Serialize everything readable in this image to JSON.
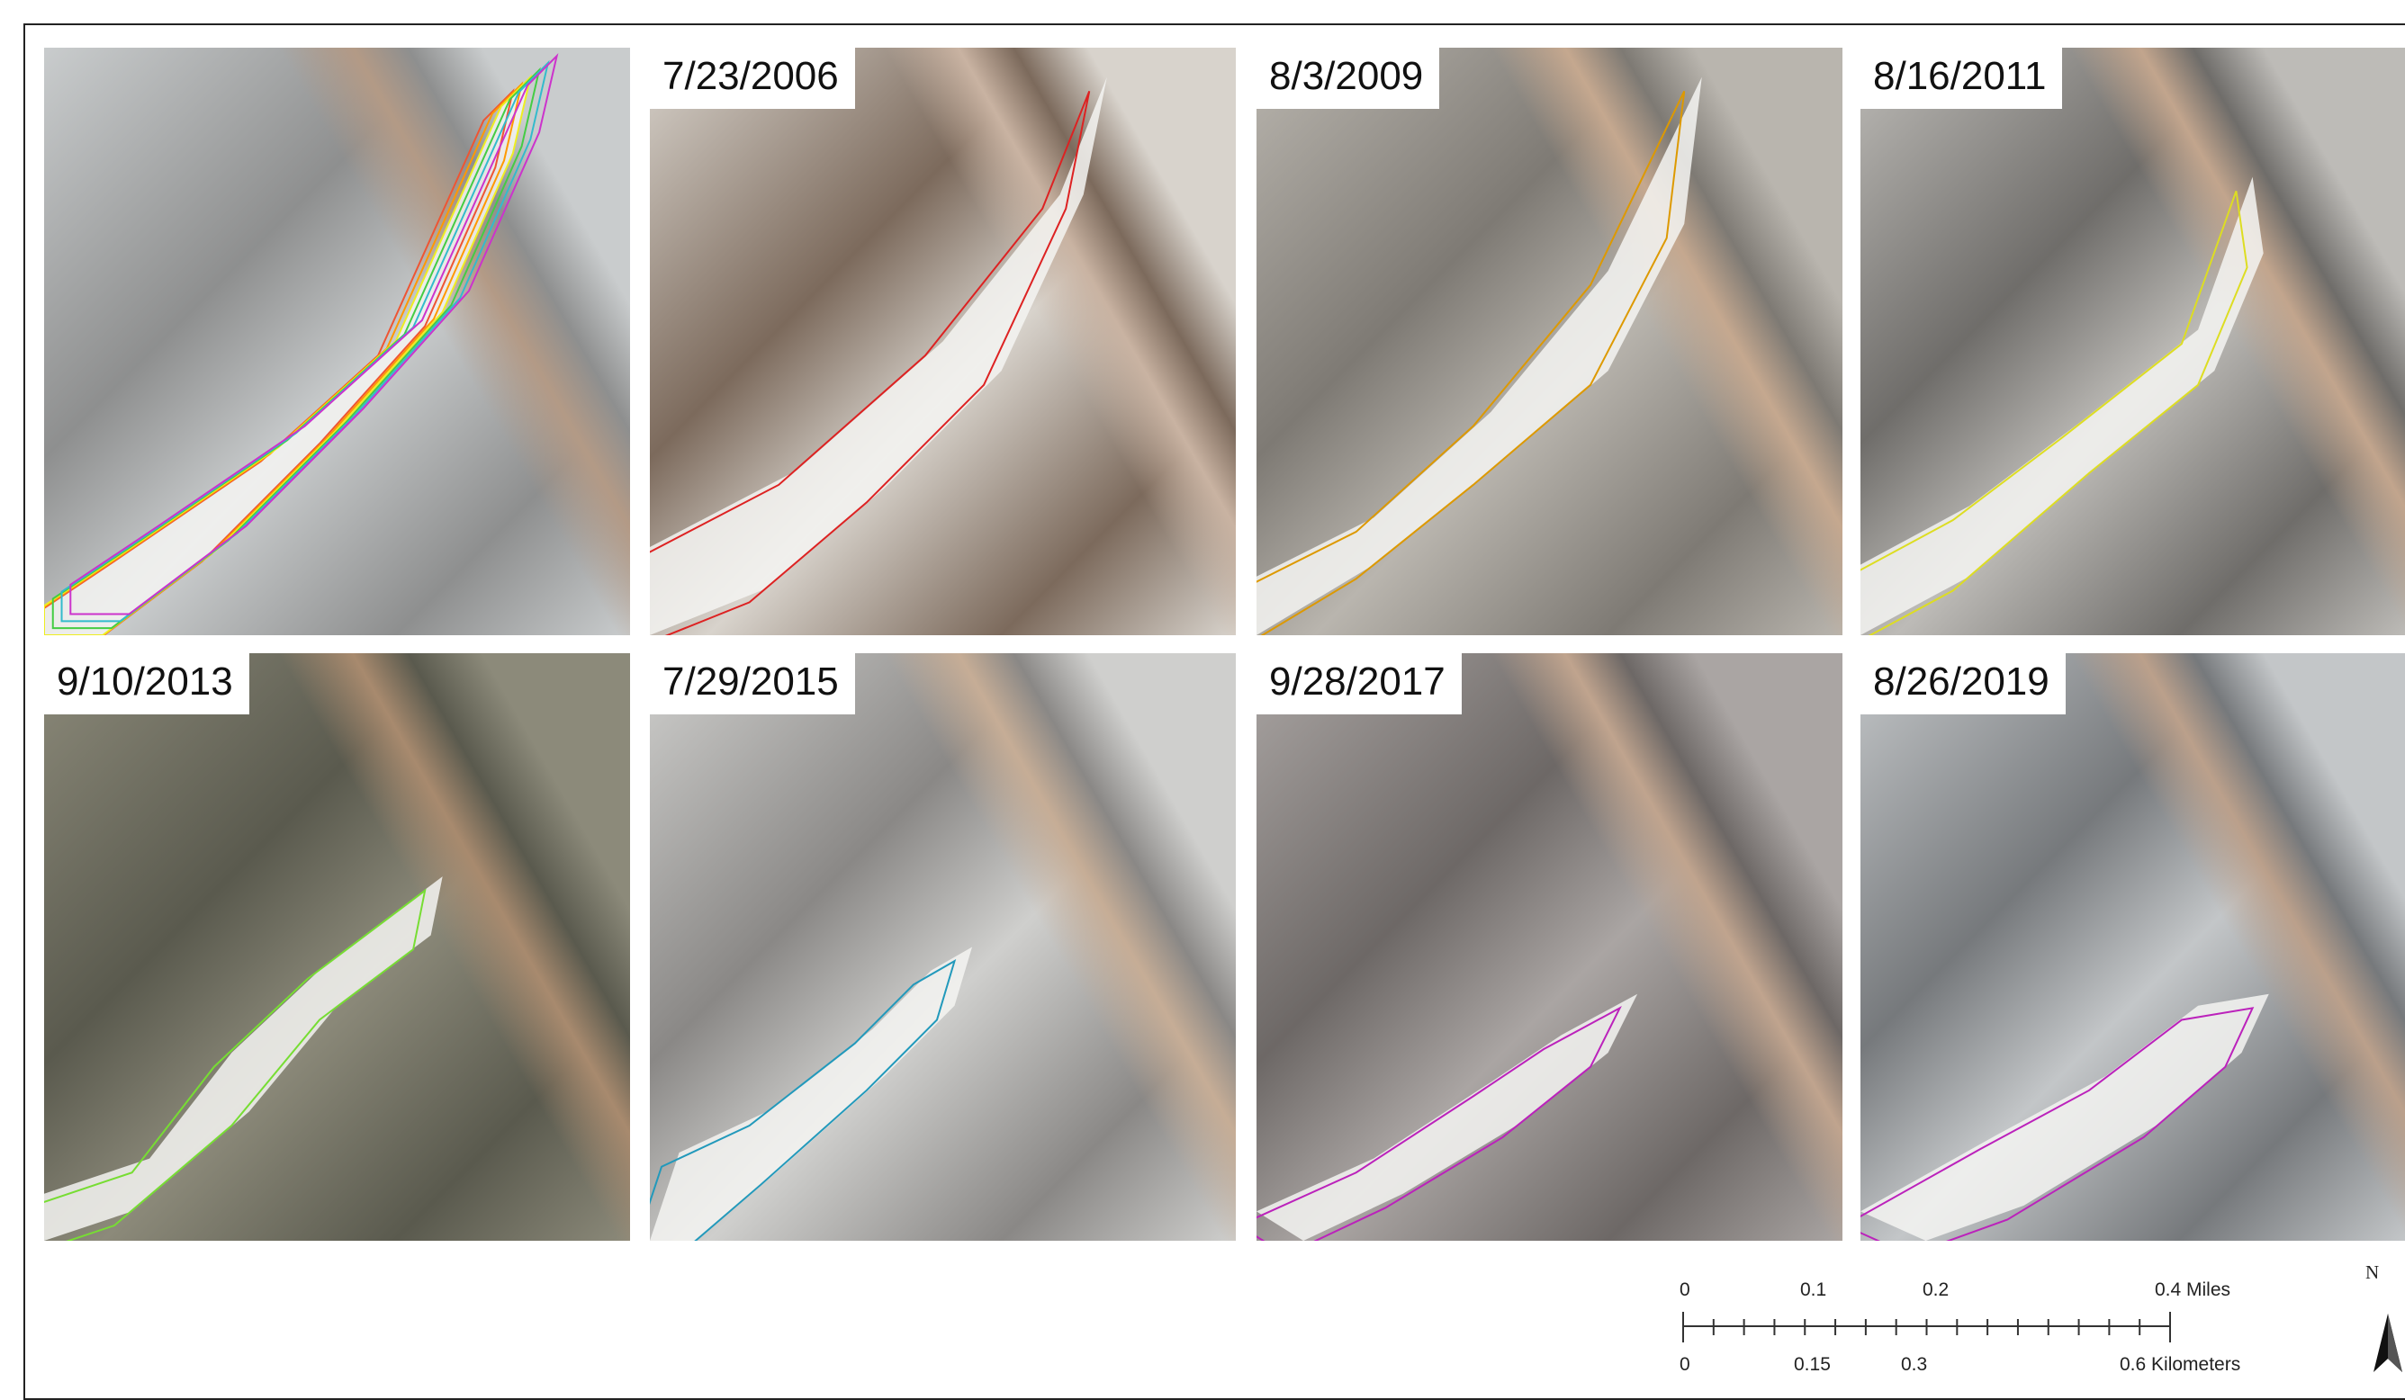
{
  "panel_labels": [
    "7/23/2006",
    "8/3/2009",
    "8/16/2011",
    "9/10/2013",
    "7/29/2015",
    "9/28/2017",
    "8/26/2019"
  ],
  "scale_bar": {
    "miles": [
      "0",
      "0.1",
      "0.2",
      "0.4 Miles"
    ],
    "kilometers": [
      "0",
      "0.15",
      "0.3",
      "0.6 Kilometers"
    ]
  },
  "north_arrow": "N"
}
